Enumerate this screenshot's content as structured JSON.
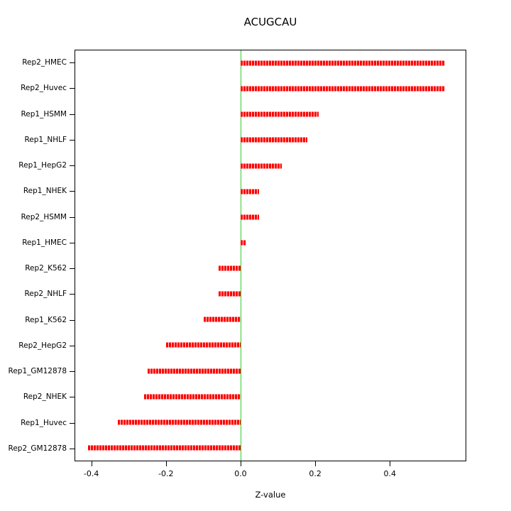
{
  "title": "ACUGCAU",
  "xlabel": "Z-value",
  "colors": {
    "bar": "#ff0000",
    "bar_gap": "#ffd6d6",
    "zero_line": "#33cc33",
    "axis": "#000000"
  },
  "chart_data": {
    "type": "bar",
    "orientation": "horizontal",
    "title": "ACUGCAU",
    "xlabel": "Z-value",
    "categories": [
      "Rep2_HMEC",
      "Rep2_Huvec",
      "Rep1_HSMM",
      "Rep1_NHLF",
      "Rep1_HepG2",
      "Rep1_NHEK",
      "Rep2_HSMM",
      "Rep1_HMEC",
      "Rep2_K562",
      "Rep2_NHLF",
      "Rep1_K562",
      "Rep2_HepG2",
      "Rep1_GM12878",
      "Rep2_NHEK",
      "Rep1_Huvec",
      "Rep2_GM12878"
    ],
    "values": [
      0.55,
      0.55,
      0.21,
      0.18,
      0.11,
      0.05,
      0.05,
      0.015,
      -0.06,
      -0.06,
      -0.1,
      -0.2,
      -0.25,
      -0.26,
      -0.33,
      -0.41
    ],
    "xlim": [
      -0.445,
      0.605
    ],
    "xticks": [
      -0.4,
      -0.2,
      0.0,
      0.2,
      0.4
    ],
    "xtick_labels": [
      "-0.4",
      "-0.2",
      "0.0",
      "0.2",
      "0.4"
    ],
    "zero_line": 0,
    "grid": false,
    "legend": "none"
  }
}
